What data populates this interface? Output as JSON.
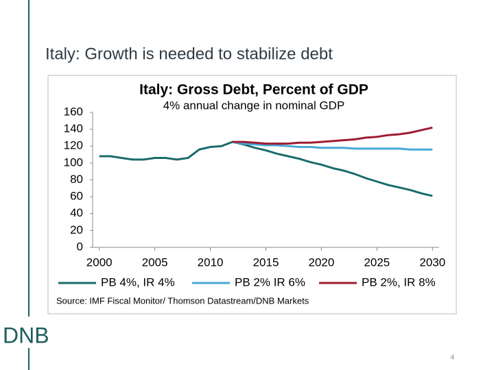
{
  "slide_title": "Italy: Growth is needed to stabilize debt",
  "logo": "DNB",
  "page_number": "4",
  "chart_data": {
    "type": "line",
    "title": "Italy: Gross Debt, Percent of GDP",
    "subtitle": "4% annual change in nominal GDP",
    "source": "Source: IMF Fiscal Monitor/ Thomson Datastream/DNB Markets",
    "x": [
      2000,
      2001,
      2002,
      2003,
      2004,
      2005,
      2006,
      2007,
      2008,
      2009,
      2010,
      2011,
      2012,
      2013,
      2014,
      2015,
      2016,
      2017,
      2018,
      2019,
      2020,
      2021,
      2022,
      2023,
      2024,
      2025,
      2026,
      2027,
      2028,
      2029,
      2030
    ],
    "series": [
      {
        "name": "PB 4%, IR 4%",
        "color": "#1a6b6b",
        "values": [
          108,
          108,
          106,
          104,
          104,
          106,
          106,
          104,
          106,
          116,
          119,
          120,
          125,
          122,
          118,
          115,
          111,
          108,
          105,
          101,
          98,
          94,
          91,
          87,
          82,
          78,
          74,
          71,
          68,
          64,
          61
        ]
      },
      {
        "name": "PB 2% IR 6%",
        "color": "#4aa8d8",
        "values": [
          null,
          null,
          null,
          null,
          null,
          null,
          null,
          null,
          null,
          null,
          null,
          null,
          125,
          123,
          122,
          121,
          121,
          120,
          119,
          119,
          118,
          118,
          118,
          117,
          117,
          117,
          117,
          117,
          116,
          116,
          116
        ]
      },
      {
        "name": "PB 2%, IR 8%",
        "color": "#9e1b32",
        "values": [
          null,
          null,
          null,
          null,
          null,
          null,
          null,
          null,
          null,
          null,
          null,
          null,
          125,
          125,
          124,
          123,
          123,
          123,
          124,
          124,
          125,
          126,
          127,
          128,
          130,
          131,
          133,
          134,
          136,
          139,
          142
        ]
      }
    ],
    "xlim": [
      1999.4,
      2030.6
    ],
    "xticks": [
      2000,
      2005,
      2010,
      2015,
      2020,
      2025,
      2030
    ],
    "ylim": [
      0,
      160
    ],
    "yticks": [
      0,
      20,
      40,
      60,
      80,
      100,
      120,
      140,
      160
    ],
    "legend": "bottom"
  }
}
